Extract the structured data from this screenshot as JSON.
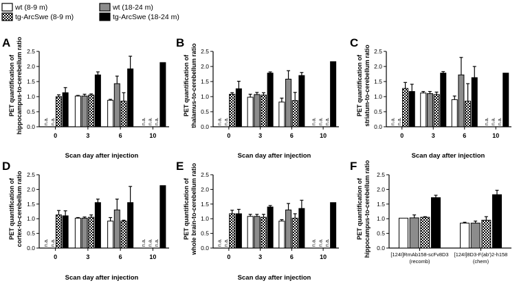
{
  "legend": {
    "items": [
      {
        "label": "wt (8-9 m)",
        "fill": "white"
      },
      {
        "label": "wt (18-24 m)",
        "fill": "gray"
      },
      {
        "label": "tg-ArcSwe (8-9 m)",
        "fill": "checker"
      },
      {
        "label": "tg-ArcSwe (18-24 m)",
        "fill": "black"
      }
    ]
  },
  "colors": {
    "gray": "#8c8c8c",
    "black": "#000000",
    "white": "#ffffff"
  },
  "na_label": "n.a.",
  "chart_data": [
    {
      "panel": "A",
      "type": "bar",
      "ylabel_lines": [
        "PET quantification of",
        "hippocampus-to-cerebellum ratio"
      ],
      "xlabel": "Scan day after injection",
      "ylim": [
        0,
        2.5
      ],
      "yticks": [
        "0.0",
        "0.5",
        "1.0",
        "1.5",
        "2.0",
        "2.5"
      ],
      "categories": [
        "0",
        "3",
        "6",
        "10"
      ],
      "series": [
        {
          "values": [
            null,
            1.02,
            0.88,
            null
          ],
          "err": [
            0,
            0.02,
            0.03,
            0
          ]
        },
        {
          "values": [
            null,
            1.02,
            1.43,
            null
          ],
          "err": [
            0,
            0.06,
            0.25,
            0
          ]
        },
        {
          "values": [
            1.0,
            1.05,
            0.85,
            null
          ],
          "err": [
            0.06,
            0.04,
            0.28,
            0
          ]
        },
        {
          "values": [
            1.13,
            1.72,
            1.92,
            2.13
          ],
          "err": [
            0.17,
            0.1,
            0.42,
            0
          ]
        }
      ]
    },
    {
      "panel": "B",
      "type": "bar",
      "ylabel_lines": [
        "PET quantification of",
        "thalamus-to-cerebellum ratio"
      ],
      "xlabel": "Scan day after injection",
      "ylim": [
        0,
        2.5
      ],
      "yticks": [
        "0.0",
        "0.5",
        "1.0",
        "1.5",
        "2.0",
        "2.5"
      ],
      "categories": [
        "0",
        "3",
        "6",
        "10"
      ],
      "series": [
        {
          "values": [
            null,
            0.98,
            0.82,
            null
          ],
          "err": [
            0,
            0.1,
            0.13,
            0
          ]
        },
        {
          "values": [
            null,
            1.07,
            1.58,
            null
          ],
          "err": [
            0,
            0.07,
            0.28,
            0
          ]
        },
        {
          "values": [
            1.08,
            1.05,
            0.87,
            null
          ],
          "err": [
            0.05,
            0.08,
            0.27,
            0
          ]
        },
        {
          "values": [
            1.26,
            1.78,
            1.7,
            2.16
          ],
          "err": [
            0.25,
            0.04,
            0.1,
            0
          ]
        }
      ]
    },
    {
      "panel": "C",
      "type": "bar",
      "ylabel_lines": [
        "PET quantification of",
        "striatum-to-cerebellum ratio"
      ],
      "xlabel": "Scan day after injection",
      "ylim": [
        0,
        2.5
      ],
      "yticks": [
        "0.0",
        "0.5",
        "1.0",
        "1.5",
        "2.0",
        "2.5"
      ],
      "categories": [
        "0",
        "3",
        "6",
        "10"
      ],
      "series": [
        {
          "values": [
            null,
            1.12,
            0.9,
            null
          ],
          "err": [
            0,
            0.05,
            0.12,
            0
          ]
        },
        {
          "values": [
            null,
            1.1,
            1.72,
            null
          ],
          "err": [
            0,
            0.07,
            0.58,
            0
          ]
        },
        {
          "values": [
            1.27,
            1.07,
            0.85,
            null
          ],
          "err": [
            0.2,
            0.08,
            0.58,
            0
          ]
        },
        {
          "values": [
            1.17,
            1.78,
            1.63,
            1.78
          ],
          "err": [
            0.24,
            0.05,
            0.37,
            0
          ]
        }
      ]
    },
    {
      "panel": "D",
      "type": "bar",
      "ylabel_lines": [
        "PET quantification of",
        "cortex-to-cerebellum ratio"
      ],
      "xlabel": "Scan day after injection",
      "ylim": [
        0,
        2.5
      ],
      "yticks": [
        "0.0",
        "0.5",
        "1.0",
        "1.5",
        "2.0",
        "2.5"
      ],
      "categories": [
        "0",
        "3",
        "6",
        "10"
      ],
      "series": [
        {
          "values": [
            null,
            1.02,
            0.92,
            null
          ],
          "err": [
            0,
            0.02,
            0.12,
            0
          ]
        },
        {
          "values": [
            null,
            1.02,
            1.3,
            null
          ],
          "err": [
            0,
            0.04,
            0.37,
            0
          ]
        },
        {
          "values": [
            1.13,
            1.05,
            0.92,
            null
          ],
          "err": [
            0.15,
            0.08,
            0.03,
            0
          ]
        },
        {
          "values": [
            1.1,
            1.55,
            1.55,
            2.13
          ],
          "err": [
            0.17,
            0.12,
            0.55,
            0
          ]
        }
      ]
    },
    {
      "panel": "E",
      "type": "bar",
      "ylabel_lines": [
        "PET quantification of",
        "whole brain-to-cerebellum ratio"
      ],
      "xlabel": "Scan day after injection",
      "ylim": [
        0,
        2.5
      ],
      "yticks": [
        "0.0",
        "0.5",
        "1.0",
        "1.5",
        "2.0",
        "2.5"
      ],
      "categories": [
        "0",
        "3",
        "6",
        "10"
      ],
      "series": [
        {
          "values": [
            null,
            1.08,
            0.92,
            null
          ],
          "err": [
            0,
            0.07,
            0.05,
            0
          ]
        },
        {
          "values": [
            null,
            1.08,
            1.3,
            null
          ],
          "err": [
            0,
            0.07,
            0.22,
            0
          ]
        },
        {
          "values": [
            1.17,
            1.05,
            1.02,
            null
          ],
          "err": [
            0.12,
            0.1,
            0.15,
            0
          ]
        },
        {
          "values": [
            1.17,
            1.4,
            1.35,
            1.55
          ],
          "err": [
            0.15,
            0.05,
            0.28,
            0
          ]
        }
      ]
    },
    {
      "panel": "F",
      "type": "bar",
      "ylabel_lines": [
        "PET quantification of",
        "hippocampus-to-cerebellum ratio"
      ],
      "xlabel": "",
      "ylim": [
        0,
        2.5
      ],
      "yticks": [
        "0.0",
        "0.5",
        "1.0",
        "1.5",
        "2.0",
        "2.5"
      ],
      "categories": [
        {
          "lines": [
            "[124I]RmAb158-scFv8D3",
            "(recomb)"
          ]
        },
        {
          "lines": [
            "[124I]8D3-F(ab')2-h158",
            "(chem)"
          ]
        }
      ],
      "series": [
        {
          "values": [
            1.02,
            0.85
          ],
          "err": [
            0,
            0.03
          ]
        },
        {
          "values": [
            1.03,
            0.85
          ],
          "err": [
            0.1,
            0.07
          ]
        },
        {
          "values": [
            1.05,
            0.95
          ],
          "err": [
            0.02,
            0.12
          ]
        },
        {
          "values": [
            1.72,
            1.82
          ],
          "err": [
            0.08,
            0.15
          ]
        }
      ]
    }
  ]
}
